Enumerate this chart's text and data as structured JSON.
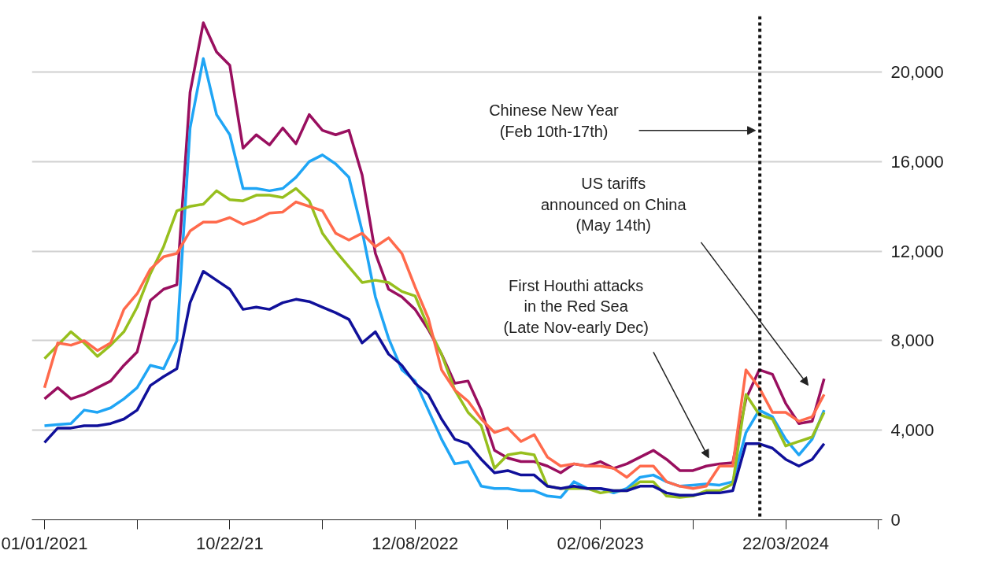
{
  "chart_data": {
    "type": "line",
    "x": [
      "2021-01-01",
      "2021-01-22",
      "2021-02-12",
      "2021-03-05",
      "2021-03-26",
      "2021-04-16",
      "2021-05-07",
      "2021-05-28",
      "2021-06-18",
      "2021-07-09",
      "2021-07-30",
      "2021-08-20",
      "2021-09-10",
      "2021-10-01",
      "2021-10-22",
      "2021-11-12",
      "2021-12-03",
      "2021-12-24",
      "2022-01-14",
      "2022-02-04",
      "2022-02-25",
      "2022-03-18",
      "2022-04-08",
      "2022-04-29",
      "2022-05-20",
      "2022-06-10",
      "2022-07-01",
      "2022-07-22",
      "2022-08-12",
      "2022-09-02",
      "2022-09-23",
      "2022-10-14",
      "2022-11-04",
      "2022-11-25",
      "2022-12-16",
      "2023-01-06",
      "2023-01-27",
      "2023-02-17",
      "2023-03-10",
      "2023-03-31",
      "2023-04-21",
      "2023-05-12",
      "2023-06-02",
      "2023-06-23",
      "2023-07-14",
      "2023-08-04",
      "2023-08-25",
      "2023-09-15",
      "2023-10-06",
      "2023-10-27",
      "2023-11-17",
      "2023-12-08",
      "2023-12-29",
      "2024-01-19",
      "2024-02-09",
      "2024-03-01",
      "2024-03-22",
      "2024-04-12",
      "2024-05-03",
      "2024-05-22"
    ],
    "series": [
      {
        "color": "#990f5f",
        "values": [
          5400,
          5900,
          5400,
          5600,
          5900,
          6200,
          6900,
          7500,
          9800,
          10300,
          10500,
          19100,
          22200,
          20900,
          20300,
          16600,
          17200,
          16750,
          17500,
          16800,
          18100,
          17400,
          17200,
          17400,
          15400,
          11900,
          10300,
          9960,
          9400,
          8500,
          7400,
          6100,
          6200,
          4900,
          3100,
          2760,
          2600,
          2600,
          2400,
          2100,
          2500,
          2400,
          2600,
          2300,
          2500,
          2800,
          3100,
          2700,
          2200,
          2200,
          2400,
          2500,
          2550,
          5400,
          6700,
          6500,
          5200,
          4300,
          4400,
          6300
        ]
      },
      {
        "color": "#1fa5f5",
        "values": [
          4200,
          4250,
          4300,
          4900,
          4800,
          5000,
          5400,
          5900,
          6900,
          6750,
          8000,
          17500,
          20600,
          18100,
          17200,
          14800,
          14800,
          14700,
          14800,
          15300,
          16000,
          16300,
          15900,
          15300,
          12900,
          9960,
          8100,
          6700,
          6200,
          4900,
          3600,
          2500,
          2600,
          1500,
          1400,
          1400,
          1300,
          1300,
          1060,
          1000,
          1700,
          1400,
          1400,
          1200,
          1400,
          1900,
          2000,
          1700,
          1500,
          1550,
          1600,
          1550,
          1700,
          3900,
          4900,
          4600,
          3600,
          2900,
          3600,
          4900
        ]
      },
      {
        "color": "#97bf1e",
        "values": [
          7200,
          7800,
          8400,
          7900,
          7300,
          7800,
          8400,
          9500,
          11000,
          12200,
          13800,
          14000,
          14100,
          14700,
          14300,
          14250,
          14500,
          14500,
          14400,
          14800,
          14250,
          12800,
          12000,
          11300,
          10600,
          10700,
          10600,
          10200,
          10000,
          8600,
          7400,
          5800,
          4800,
          4200,
          2300,
          2900,
          3000,
          2900,
          1500,
          1400,
          1400,
          1400,
          1200,
          1300,
          1300,
          1700,
          1700,
          1060,
          1000,
          1060,
          1300,
          1300,
          1600,
          5600,
          4700,
          4500,
          3300,
          3500,
          3700,
          4800
        ]
      },
      {
        "color": "#ff6a4c",
        "values": [
          5900,
          7900,
          7800,
          8000,
          7560,
          7900,
          9400,
          10100,
          11200,
          11750,
          11900,
          12900,
          13300,
          13300,
          13500,
          13200,
          13400,
          13700,
          13750,
          14200,
          14000,
          13800,
          12800,
          12500,
          12800,
          12200,
          12600,
          11900,
          10400,
          9000,
          6700,
          5800,
          5300,
          4500,
          3900,
          4100,
          3500,
          3800,
          2800,
          2400,
          2500,
          2400,
          2400,
          2300,
          1900,
          2400,
          2400,
          1700,
          1500,
          1400,
          1500,
          2400,
          2400,
          6700,
          5900,
          4800,
          4800,
          4400,
          4600,
          5600
        ]
      },
      {
        "color": "#10109a",
        "values": [
          3450,
          4100,
          4100,
          4200,
          4200,
          4300,
          4500,
          4900,
          6000,
          6400,
          6750,
          9700,
          11100,
          10700,
          10300,
          9400,
          9500,
          9400,
          9700,
          9850,
          9750,
          9500,
          9250,
          8950,
          7900,
          8400,
          7400,
          6900,
          6100,
          5600,
          4500,
          3600,
          3400,
          2700,
          2100,
          2200,
          2000,
          2000,
          1500,
          1400,
          1500,
          1400,
          1400,
          1300,
          1300,
          1500,
          1500,
          1200,
          1100,
          1100,
          1200,
          1200,
          1300,
          3400,
          3400,
          3200,
          2700,
          2400,
          2700,
          3400
        ]
      }
    ],
    "xlim": [
      "2020-12-12",
      "2024-08-22"
    ],
    "xticks": [
      {
        "value": "2021-01-01",
        "label": "01/01/2021"
      },
      {
        "value": "2021-05-28",
        "label": null
      },
      {
        "value": "2021-10-22",
        "label": "10/22/21"
      },
      {
        "value": "2022-03-18",
        "label": null
      },
      {
        "value": "2022-08-12",
        "label": "12/08/2022"
      },
      {
        "value": "2023-01-06",
        "label": null
      },
      {
        "value": "2023-06-02",
        "label": "02/06/2023"
      },
      {
        "value": "2023-10-27",
        "label": null
      },
      {
        "value": "2024-03-22",
        "label": "22/03/2024"
      },
      {
        "value": "2024-08-16",
        "label": null
      }
    ],
    "ylim": [
      0,
      22500
    ],
    "yticks": [
      0,
      {
        "value": 4000,
        "label": "4,000"
      },
      {
        "value": 8000,
        "label": "8,000"
      },
      {
        "value": 12000,
        "label": "12,000"
      },
      {
        "value": 16000,
        "label": "16,000"
      },
      {
        "value": 20000,
        "label": "20,000"
      }
    ],
    "grid": "y",
    "ref_lines": [
      {
        "axis": "x",
        "value": "2024-02-10",
        "label": null,
        "color": "#111111",
        "line_style": "dotted"
      }
    ],
    "annotations": [
      "Chinese New Year\n(Feb 10th-17th)",
      "US tariffs\nannounced on China\n(May 14th)",
      "First Houthi attacks\nin the Red Sea\n(Late Nov-early Dec)"
    ]
  }
}
